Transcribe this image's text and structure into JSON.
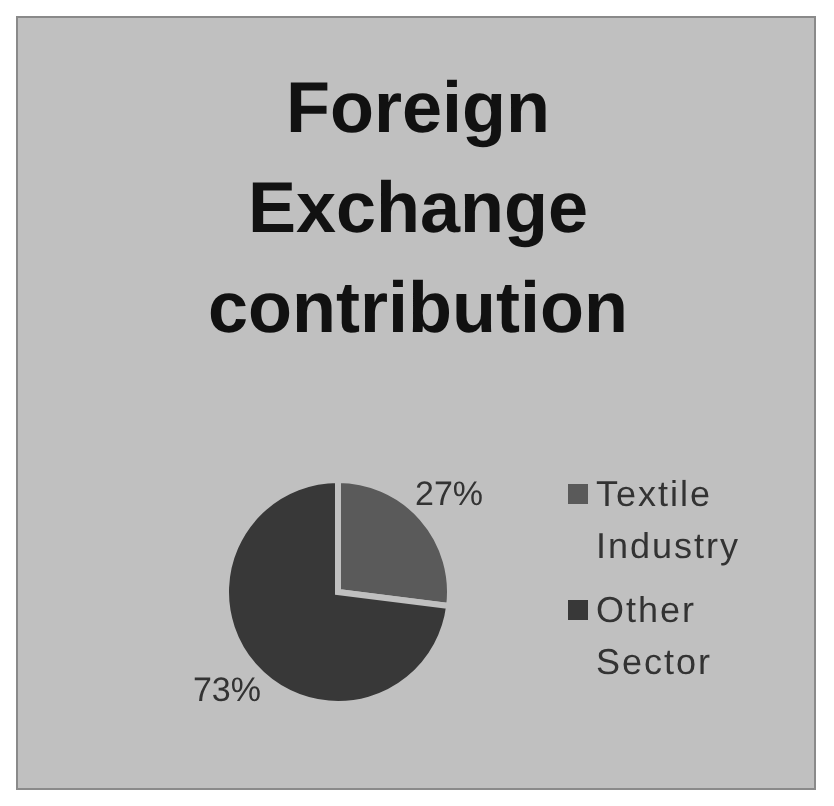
{
  "chart_data": {
    "type": "pie",
    "title": "Foreign Exchange contribution",
    "categories": [
      "Textile Industry",
      "Other Sector"
    ],
    "values": [
      27,
      73
    ],
    "colors": [
      "#5a5a5a",
      "#383838"
    ],
    "value_labels": [
      "27%",
      "73%"
    ],
    "legend": "right"
  }
}
